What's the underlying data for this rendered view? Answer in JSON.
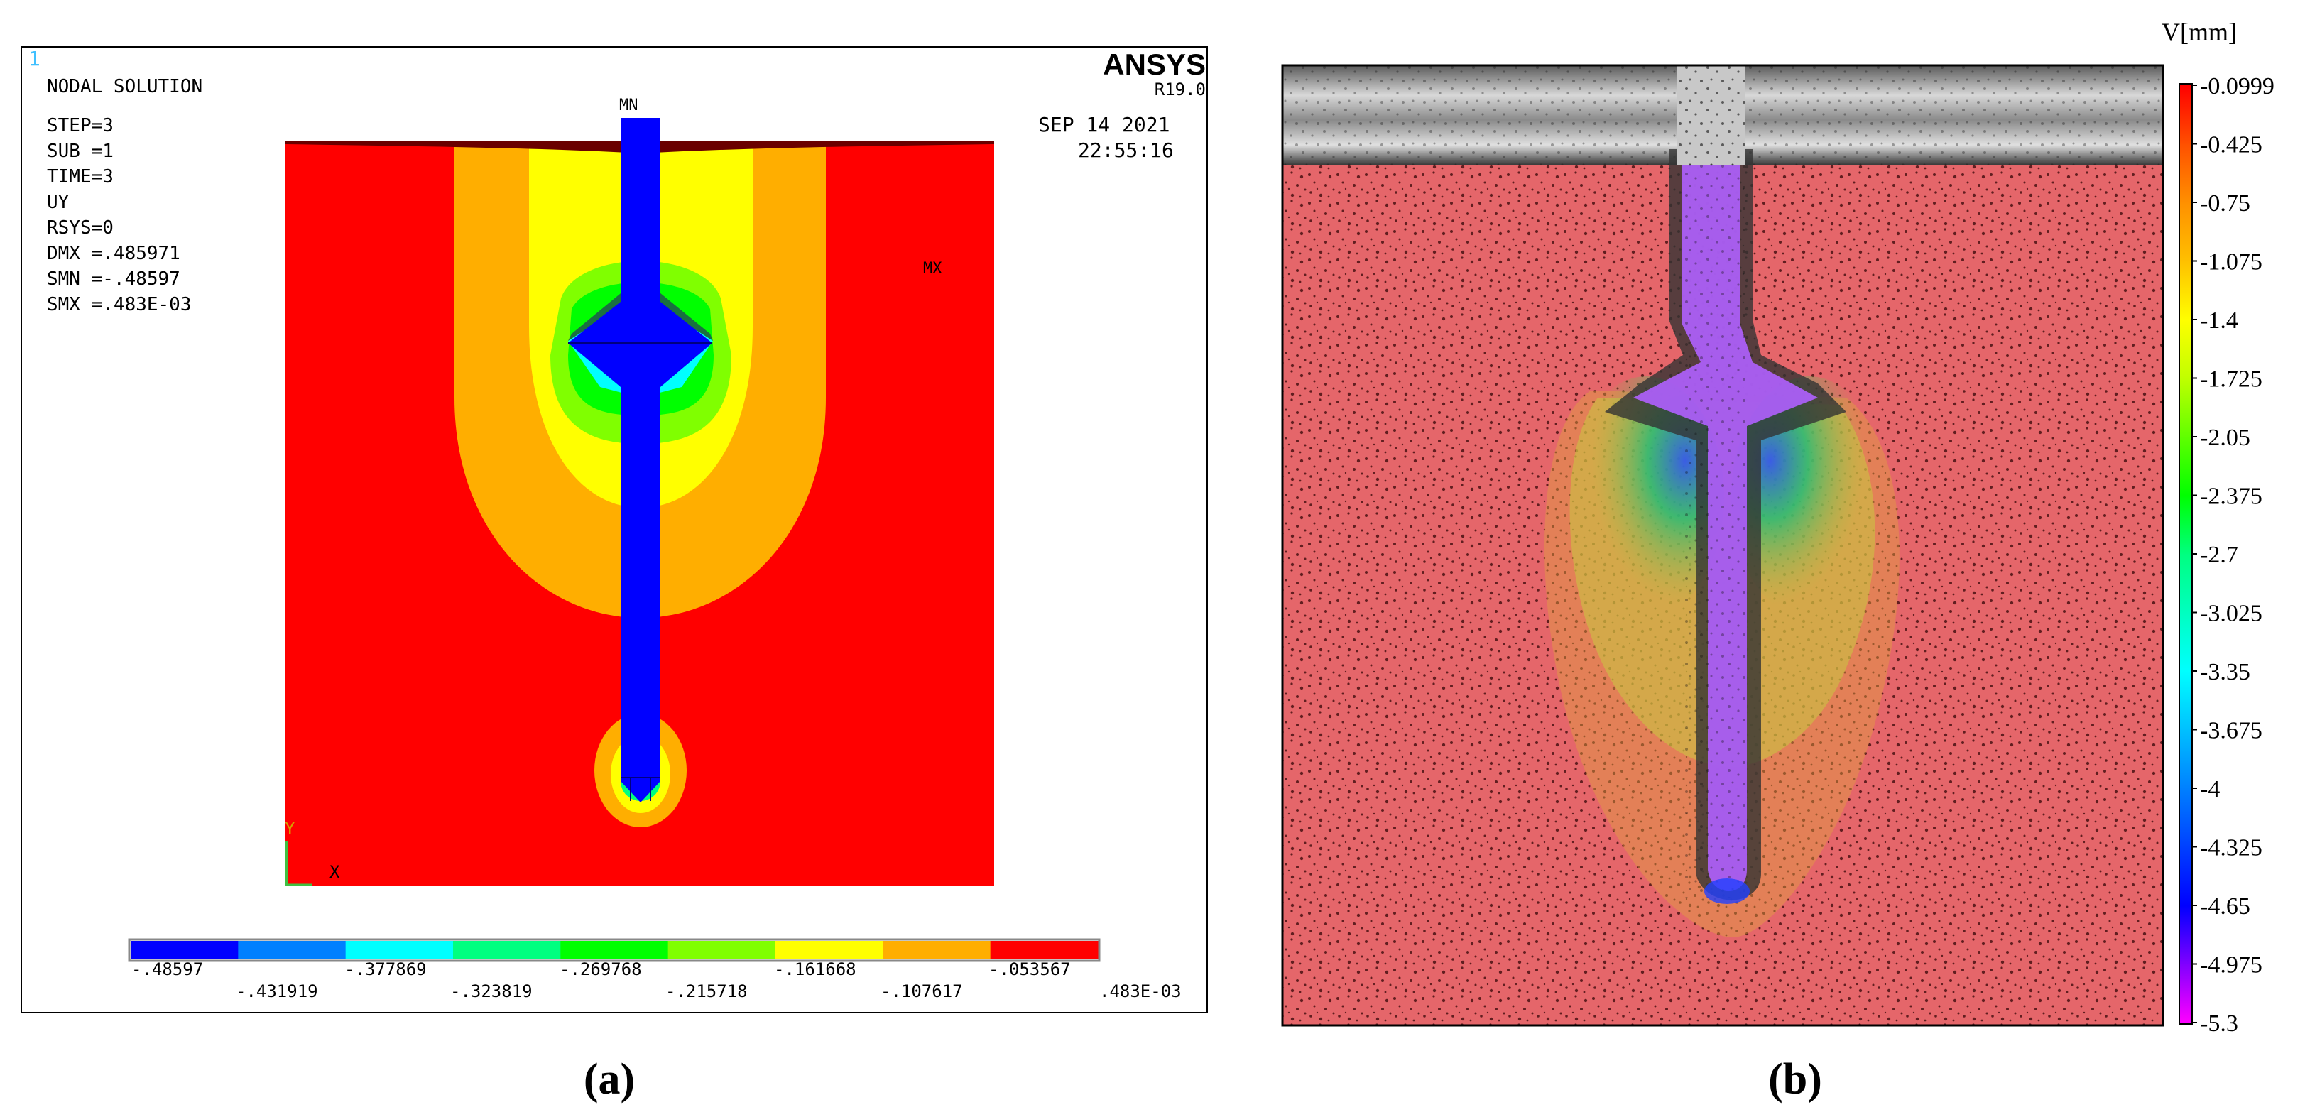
{
  "panel_a": {
    "caption": "(a)",
    "corner_number": "1",
    "header_lines": [
      "NODAL SOLUTION",
      "STEP=3",
      "SUB =1",
      "TIME=3",
      "UY",
      "RSYS=0",
      "DMX =.485971",
      "SMN =-.48597",
      "SMX =.483E-03"
    ],
    "brand": "ANSYS",
    "version": "R19.0",
    "date": "SEP 14 2021",
    "time": "22:55:16",
    "min_marker": "MN",
    "max_marker": "MX",
    "axis_y": "Y",
    "axis_x": "X",
    "legend_colors": [
      "#0000ff",
      "#0080ff",
      "#00ffff",
      "#00ff80",
      "#00ff00",
      "#80ff00",
      "#ffff00",
      "#ffae00",
      "#ff0000"
    ],
    "legend_labels_top": [
      "-.48597",
      "-.377869",
      "-.269768",
      "-.161668",
      "-.053567"
    ],
    "legend_labels_bottom": [
      "-.431919",
      "-.323819",
      "-.215718",
      "-.107617",
      ".483E-03"
    ],
    "contour_colors": {
      "background": "#ff0000",
      "orange": "#ffae00",
      "yellow": "#ffff00",
      "light_green": "#80ff00",
      "green": "#00ff00",
      "cyan": "#00ffff",
      "anchor": "#0000ff"
    }
  },
  "panel_b": {
    "caption": "(b)",
    "unit_label": "V[mm]",
    "scale_labels": [
      "-0.0999",
      "-0.425",
      "-0.75",
      "-1.075",
      "-1.4",
      "-1.725",
      "-2.05",
      "-2.375",
      "-2.7",
      "-3.025",
      "-3.35",
      "-3.675",
      "-4",
      "-4.325",
      "-4.65",
      "-4.975",
      "-5.3"
    ],
    "scale_colors": [
      "#ff0000",
      "#ff5000",
      "#ff9000",
      "#ffc000",
      "#ffff00",
      "#c0ff00",
      "#60ff00",
      "#00ff00",
      "#00ff80",
      "#00ffc0",
      "#00ffff",
      "#00c0ff",
      "#0080ff",
      "#0040ff",
      "#0000ff",
      "#8000ff",
      "#ff00ff"
    ],
    "overlay_color": "#e84a50",
    "anchor_color": "#b060ff"
  }
}
